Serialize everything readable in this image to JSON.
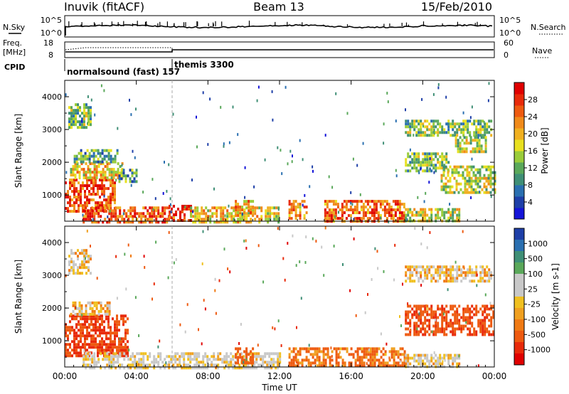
{
  "header": {
    "station": "Inuvik (fitACF)",
    "beam": "Beam 13",
    "date": "15/Feb/2010"
  },
  "strips": {
    "nsky_label": "N.Sky",
    "nsky_ticks": [
      "10^5",
      "10^0"
    ],
    "nsearch_label": "N.Search",
    "freq_label_1": "Freq.",
    "freq_label_2": "[MHz]",
    "freq_ticks": [
      "18",
      "8"
    ],
    "nave_label": "Nave",
    "nave_ticks": [
      "60",
      "0"
    ],
    "cpid_label": "CPID",
    "modes": [
      "normalsound (fast) 157",
      "themis 3300"
    ]
  },
  "chart_data": [
    {
      "type": "heatmap",
      "name": "power",
      "ylabel": "Slant Range [km]",
      "xlabel": "",
      "x_ticks": [
        "00:00",
        "04:00",
        "08:00",
        "12:00",
        "16:00",
        "20:00",
        "00:00"
      ],
      "y_ticks": [
        "1000",
        "2000",
        "3000",
        "4000"
      ],
      "ylim": [
        200,
        4500
      ],
      "colorbar": {
        "label": "Power [dB]",
        "ticks": [
          "4",
          "8",
          "12",
          "16",
          "20",
          "24",
          "28"
        ],
        "colors": [
          "#1414d8",
          "#1e3fa8",
          "#2a6fb0",
          "#3f8f76",
          "#5aa85a",
          "#9acc3a",
          "#e8e020",
          "#f0b020",
          "#f08a1a",
          "#ee5a10",
          "#e82a0a",
          "#e00000"
        ]
      },
      "regions": [
        {
          "t0": 0.0,
          "t1": 2.8,
          "r0": 500,
          "r1": 1500,
          "v": 26
        },
        {
          "t0": 0.3,
          "t1": 3.2,
          "r0": 1500,
          "r1": 2000,
          "v": 18
        },
        {
          "t0": 0.5,
          "t1": 3.0,
          "r0": 2000,
          "r1": 2400,
          "v": 10
        },
        {
          "t0": 0.2,
          "t1": 1.5,
          "r0": 3100,
          "r1": 3800,
          "v": 12
        },
        {
          "t0": 3.0,
          "t1": 4.0,
          "r0": 1400,
          "r1": 1800,
          "v": 9
        },
        {
          "t0": 1.0,
          "t1": 5.8,
          "r0": 200,
          "r1": 650,
          "v": 25
        },
        {
          "t0": 5.8,
          "t1": 7.0,
          "r0": 200,
          "r1": 700,
          "v": 27
        },
        {
          "t0": 7.0,
          "t1": 12.0,
          "r0": 200,
          "r1": 650,
          "v": 18
        },
        {
          "t0": 9.5,
          "t1": 10.5,
          "r0": 400,
          "r1": 850,
          "v": 20
        },
        {
          "t0": 12.5,
          "t1": 13.5,
          "r0": 300,
          "r1": 850,
          "v": 21
        },
        {
          "t0": 14.5,
          "t1": 19.0,
          "r0": 200,
          "r1": 850,
          "v": 24
        },
        {
          "t0": 19.0,
          "t1": 22.0,
          "r0": 200,
          "r1": 600,
          "v": 16
        },
        {
          "t0": 19.0,
          "t1": 23.8,
          "r0": 2800,
          "r1": 3300,
          "v": 12
        },
        {
          "t0": 21.8,
          "t1": 23.5,
          "r0": 2300,
          "r1": 2800,
          "v": 14
        },
        {
          "t0": 19.0,
          "t1": 21.5,
          "r0": 1700,
          "r1": 2300,
          "v": 12
        },
        {
          "t0": 21.0,
          "t1": 24.0,
          "r0": 1100,
          "r1": 1900,
          "v": 15
        }
      ]
    },
    {
      "type": "heatmap",
      "name": "velocity",
      "ylabel": "Slant Range [km]",
      "xlabel": "Time UT",
      "x_ticks": [
        "00:00",
        "04:00",
        "08:00",
        "12:00",
        "16:00",
        "20:00",
        "00:00"
      ],
      "y_ticks": [
        "1000",
        "2000",
        "3000",
        "4000"
      ],
      "ylim": [
        200,
        4500
      ],
      "colorbar": {
        "label": "Velocity [m s-1]",
        "ticks": [
          "1000",
          "500",
          "100",
          "25",
          "-25",
          "-100",
          "-500",
          "-1000"
        ],
        "colors": [
          "#1e3fa8",
          "#2a6fb0",
          "#3f8f76",
          "#5aa85a",
          "#c8c8c8",
          "#c8c8c8",
          "#f0c020",
          "#f0a020",
          "#f07a14",
          "#ee5a10",
          "#e82a0a",
          "#e00000"
        ]
      },
      "regions": [
        {
          "t0": 0.0,
          "t1": 3.5,
          "r0": 500,
          "r1": 1800,
          "v": -300
        },
        {
          "t0": 0.3,
          "t1": 2.5,
          "r0": 1800,
          "r1": 2200,
          "v": 0
        },
        {
          "t0": 0.2,
          "t1": 1.5,
          "r0": 3100,
          "r1": 3800,
          "v": 0
        },
        {
          "t0": 1.0,
          "t1": 12.0,
          "r0": 200,
          "r1": 650,
          "v": 50
        },
        {
          "t0": 9.5,
          "t1": 10.5,
          "r0": 300,
          "r1": 800,
          "v": -200
        },
        {
          "t0": 12.5,
          "t1": 19.0,
          "r0": 200,
          "r1": 800,
          "v": -120
        },
        {
          "t0": 19.0,
          "t1": 23.8,
          "r0": 2800,
          "r1": 3300,
          "v": 0
        },
        {
          "t0": 19.0,
          "t1": 24.0,
          "r0": 1200,
          "r1": 2100,
          "v": -250
        },
        {
          "t0": 19.0,
          "t1": 22.0,
          "r0": 200,
          "r1": 600,
          "v": 30
        }
      ]
    }
  ]
}
